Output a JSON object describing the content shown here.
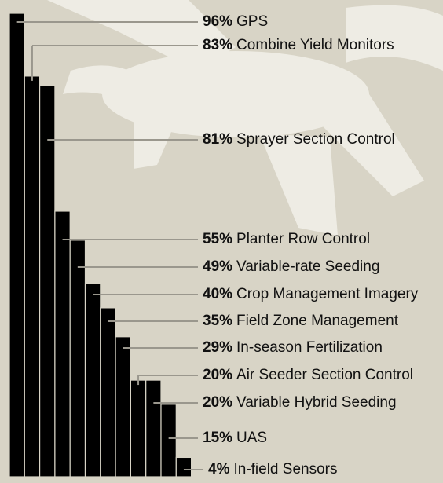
{
  "chart_data": {
    "type": "bar",
    "categories": [
      "GPS",
      "Combine Yield Monitors",
      "Sprayer Section Control",
      "Planter Row Control",
      "Variable-rate Seeding",
      "Crop Management Imagery",
      "Field Zone Management",
      "In-season Fertilization",
      "Air Seeder Section Control",
      "Variable Hybrid Seeding",
      "UAS",
      "In-field Sensors"
    ],
    "values": [
      96,
      83,
      81,
      55,
      49,
      40,
      35,
      29,
      20,
      20,
      15,
      4
    ],
    "value_labels": [
      "96%",
      "83%",
      "81%",
      "55%",
      "49%",
      "40%",
      "35%",
      "29%",
      "20%",
      "20%",
      "15%",
      "4%"
    ],
    "color": "#000000"
  }
}
